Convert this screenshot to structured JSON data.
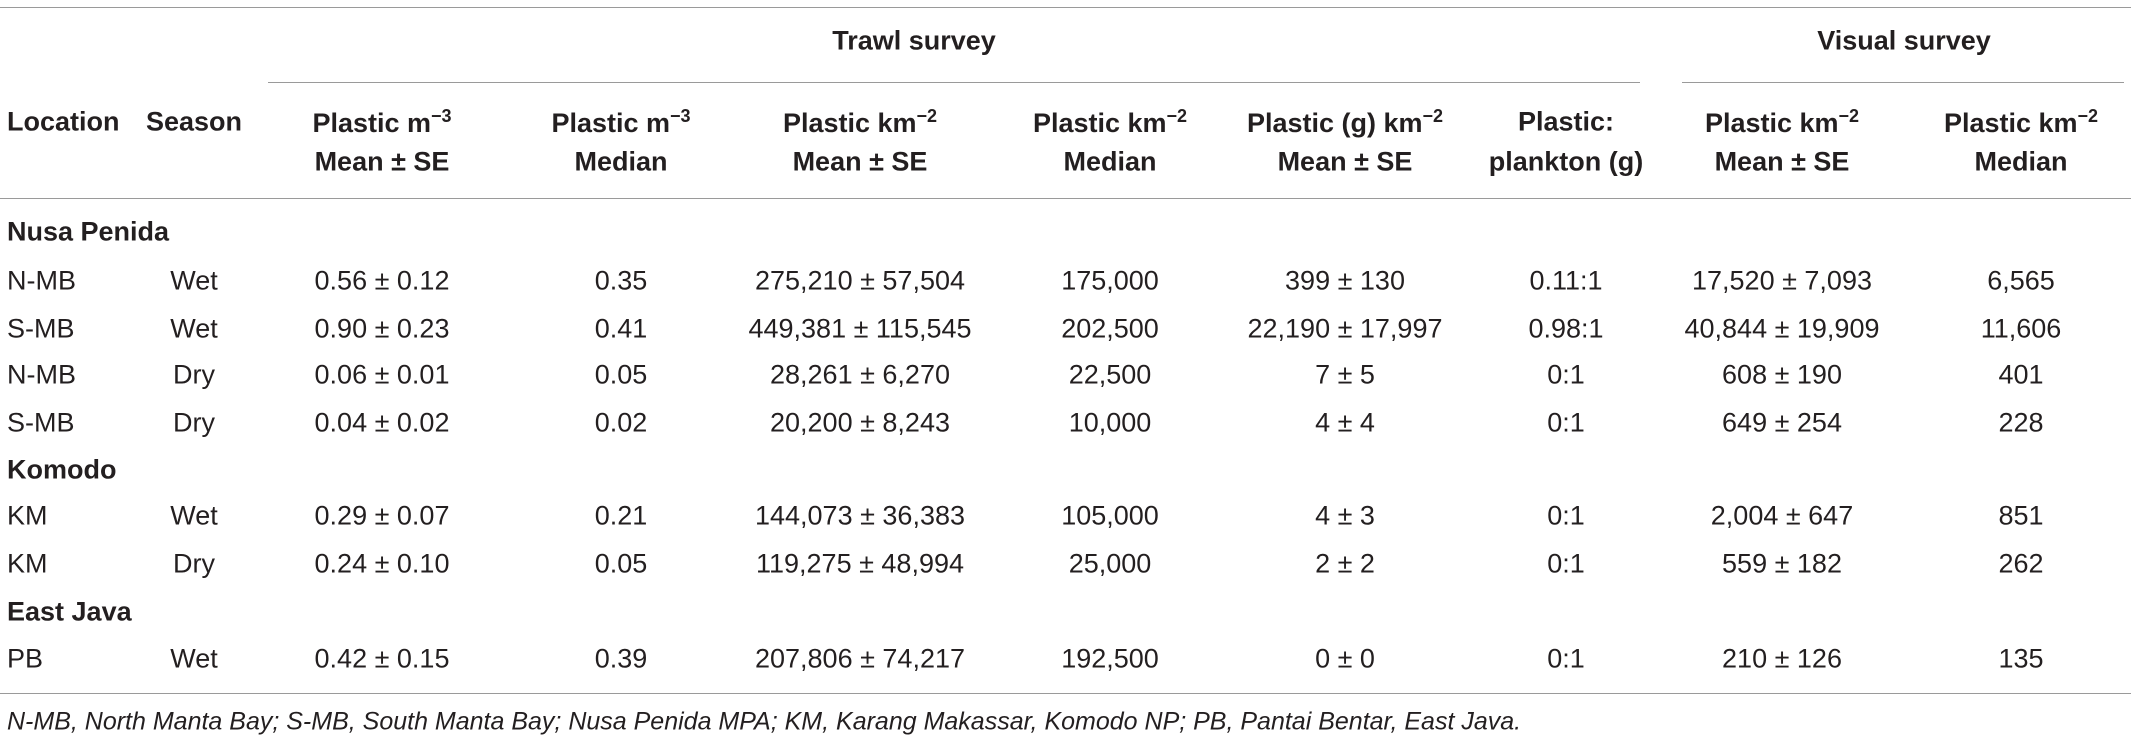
{
  "table": {
    "spanners": [
      {
        "label": "Trawl survey"
      },
      {
        "label": "Visual survey"
      }
    ],
    "columns": [
      {
        "text": "Location"
      },
      {
        "text": "Season"
      },
      {
        "text": "Plastic m",
        "sup": "−3",
        "line2": "Mean ± SE"
      },
      {
        "text": "Plastic m",
        "sup": "−3",
        "line2": "Median"
      },
      {
        "text": "Plastic km",
        "sup": "−2",
        "line2": "Mean ± SE"
      },
      {
        "text": "Plastic km",
        "sup": "−2",
        "line2": "Median"
      },
      {
        "text": "Plastic (g) km",
        "sup": "−2",
        "line2": "Mean ± SE"
      },
      {
        "text": "Plastic:",
        "line2": "plankton (g)"
      },
      {
        "text": "Plastic km",
        "sup": "−2",
        "line2": "Mean ± SE"
      },
      {
        "text": "Plastic km",
        "sup": "−2",
        "line2": "Median"
      }
    ],
    "rows": [
      {
        "group": "Nusa Penida"
      },
      {
        "cells": [
          "N-MB",
          "Wet",
          "0.56 ± 0.12",
          "0.35",
          "275,210 ± 57,504",
          "175,000",
          "399 ± 130",
          "0.11:1",
          "17,520 ± 7,093",
          "6,565"
        ]
      },
      {
        "cells": [
          "S-MB",
          "Wet",
          "0.90 ± 0.23",
          "0.41",
          "449,381 ± 115,545",
          "202,500",
          "22,190 ± 17,997",
          "0.98:1",
          "40,844 ± 19,909",
          "11,606"
        ]
      },
      {
        "cells": [
          "N-MB",
          "Dry",
          "0.06 ± 0.01",
          "0.05",
          "28,261 ± 6,270",
          "22,500",
          "7 ± 5",
          "0:1",
          "608 ± 190",
          "401"
        ]
      },
      {
        "cells": [
          "S-MB",
          "Dry",
          "0.04 ± 0.02",
          "0.02",
          "20,200 ± 8,243",
          "10,000",
          "4 ± 4",
          "0:1",
          "649 ± 254",
          "228"
        ]
      },
      {
        "group": "Komodo"
      },
      {
        "cells": [
          "KM",
          "Wet",
          "0.29 ± 0.07",
          "0.21",
          "144,073 ± 36,383",
          "105,000",
          "4 ± 3",
          "0:1",
          "2,004 ± 647",
          "851"
        ]
      },
      {
        "cells": [
          "KM",
          "Dry",
          "0.24 ± 0.10",
          "0.05",
          "119,275 ± 48,994",
          "25,000",
          "2 ± 2",
          "0:1",
          "559 ± 182",
          "262"
        ]
      },
      {
        "group": "East Java"
      },
      {
        "cells": [
          "PB",
          "Wet",
          "0.42 ± 0.15",
          "0.39",
          "207,806 ± 74,217",
          "192,500",
          "0 ± 0",
          "0:1",
          "210 ± 126",
          "135"
        ]
      }
    ],
    "footnote": "N-MB, North Manta Bay; S-MB, South Manta Bay; Nusa Penida MPA; KM, Karang Makassar, Komodo NP; PB, Pantai Bentar, East Java."
  }
}
